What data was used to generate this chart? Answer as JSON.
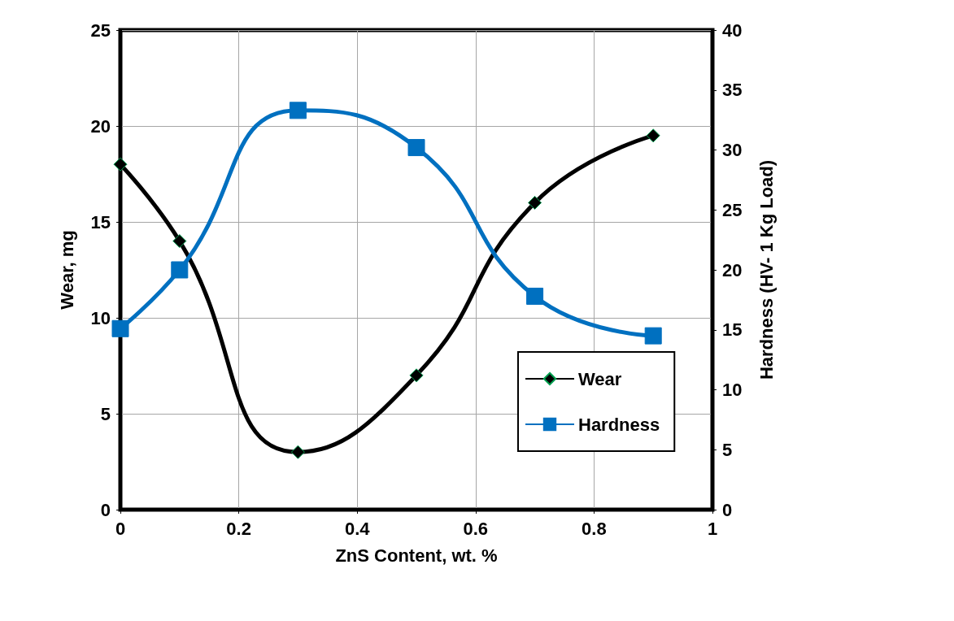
{
  "chart_data": {
    "type": "line",
    "xlabel": "ZnS Content, wt. %",
    "ylabel": "Wear, mg",
    "y2label": "Hardness (HV- 1 Kg Load)",
    "series": [
      {
        "name": "Wear",
        "color": "#000000",
        "marker": "diamond",
        "x": [
          0,
          0.1,
          0.3,
          0.5,
          0.7,
          0.9
        ],
        "values": [
          18,
          14,
          3,
          7,
          16,
          19.5
        ]
      },
      {
        "name": "Hardness",
        "color": "#0070c0",
        "marker": "square",
        "axis": "y2",
        "x": [
          0,
          0.1,
          0.3,
          0.5,
          0.7,
          0.9
        ],
        "values": [
          15.1,
          20,
          33.3,
          30.2,
          17.8,
          14.5
        ]
      }
    ],
    "xlim": [
      0,
      1
    ],
    "xticks": [
      0,
      0.2,
      0.4,
      0.6,
      0.8,
      1
    ],
    "ylim": [
      0,
      25
    ],
    "yticks": [
      0,
      5,
      10,
      15,
      20,
      25
    ],
    "y2lim": [
      0,
      40
    ],
    "y2ticks": [
      0,
      5,
      10,
      15,
      20,
      25,
      30,
      35,
      40
    ],
    "grid": true,
    "legend": "bottom right"
  }
}
